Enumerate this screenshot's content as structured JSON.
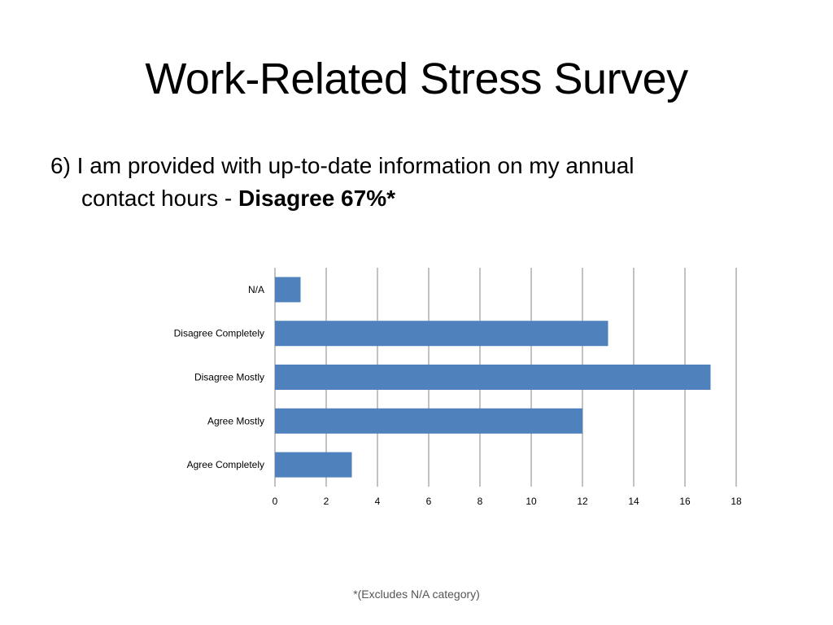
{
  "slide": {
    "title": "Work-Related Stress Survey",
    "question_prefix": "6) I am provided with up-to-date information on my annual",
    "question_line2": "contact hours - ",
    "question_answer": "Disagree 67%*",
    "footnote": "*(Excludes N/A category)"
  },
  "colors": {
    "bar": "#4f81bd",
    "grid": "#868686"
  },
  "chart_data": {
    "type": "bar",
    "orientation": "horizontal",
    "categories": [
      "N/A",
      "Disagree Completely",
      "Disagree Mostly",
      "Agree Mostly",
      "Agree Completely"
    ],
    "values": [
      1,
      13,
      17,
      12,
      3
    ],
    "xlim": [
      0,
      18
    ],
    "xticks": [
      0,
      2,
      4,
      6,
      8,
      10,
      12,
      14,
      16,
      18
    ],
    "grid": true,
    "legend": "none",
    "title": "",
    "xlabel": "",
    "ylabel": ""
  }
}
